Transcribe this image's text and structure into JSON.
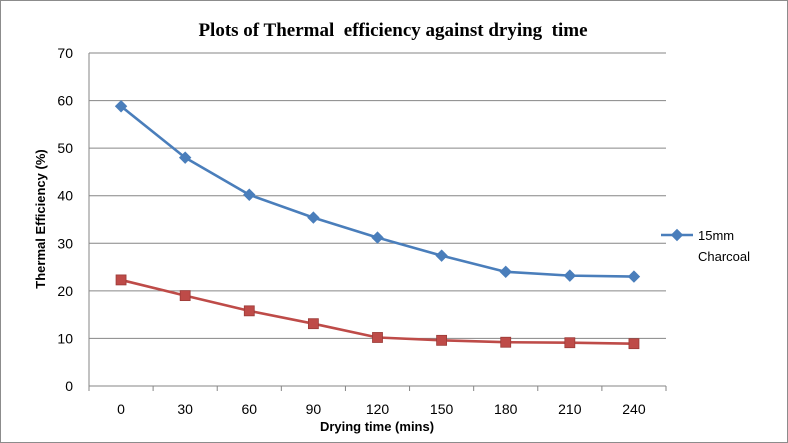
{
  "chart_data": {
    "type": "line",
    "title": "Plots of Thermal  efficiency against drying  time",
    "xlabel": "Drying time (mins)",
    "ylabel": "Thermal Efficiency (%)",
    "x": [
      0,
      30,
      60,
      90,
      120,
      150,
      180,
      210,
      240
    ],
    "ylim": [
      0,
      70
    ],
    "yticks": [
      0,
      10,
      20,
      30,
      40,
      50,
      60,
      70
    ],
    "grid": true,
    "legend_position": "right",
    "series": [
      {
        "name": "15mm Charcoal",
        "legend_lines": [
          "15mm",
          "Charcoal"
        ],
        "color": "#4a7ebb",
        "marker": "diamond",
        "values": [
          58.8,
          48.0,
          40.2,
          35.4,
          31.2,
          27.4,
          24.0,
          23.2,
          23.0
        ]
      },
      {
        "color": "#be4b48",
        "marker": "square",
        "values": [
          22.3,
          19.0,
          15.8,
          13.1,
          10.2,
          9.6,
          9.2,
          9.1,
          8.9
        ]
      }
    ]
  }
}
